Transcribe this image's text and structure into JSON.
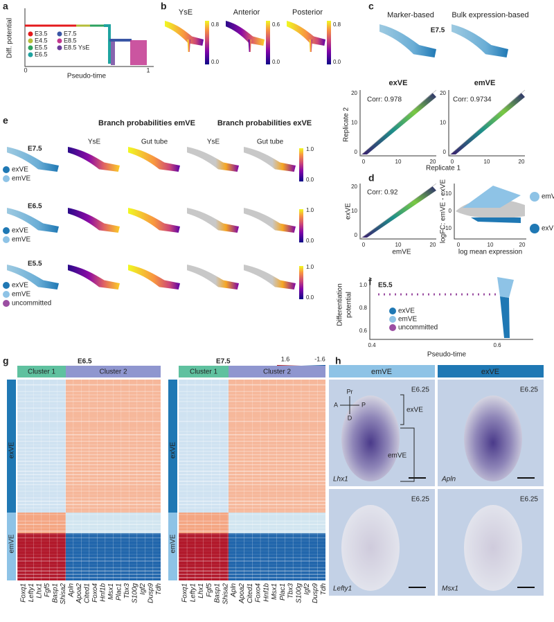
{
  "panel_a": {
    "letter": "a",
    "y_label": "Diff. potential",
    "x_label": "Pseudo-time",
    "x_ticks": [
      "0",
      "1"
    ],
    "legend": [
      {
        "label": "E3.5",
        "color": "#e41a1c"
      },
      {
        "label": "E4.5",
        "color": "#b5bd3a"
      },
      {
        "label": "E5.5",
        "color": "#2ca25f"
      },
      {
        "label": "E6.5",
        "color": "#1fa3a0"
      },
      {
        "label": "E7.5",
        "color": "#3a56a5"
      },
      {
        "label": "E8.5",
        "color": "#c2378f"
      },
      {
        "label": "E8.5 YsE",
        "color": "#6a3d9a"
      }
    ]
  },
  "panel_b": {
    "letter": "b",
    "titles": [
      "YsE",
      "Anterior",
      "Posterior"
    ],
    "colorbars": [
      [
        "0.8",
        "0.0"
      ],
      [
        "0.6",
        "0.0"
      ],
      [
        "0.8",
        "0.0"
      ]
    ]
  },
  "panel_c": {
    "letter": "c",
    "method_titles": [
      "Marker-based",
      "Bulk expression-based"
    ],
    "stage": "E7.5",
    "plot_titles": [
      "exVE",
      "emVE"
    ],
    "corr": [
      "Corr: 0.978",
      "Corr: 0.9734"
    ],
    "y_label": "Replicate 2",
    "x_label": "Replicate 1",
    "ticks": [
      "0",
      "10",
      "20"
    ]
  },
  "panel_e": {
    "letter": "e",
    "group_titles": [
      "Branch probabilities emVE",
      "Branch probabilities exVE"
    ],
    "column_titles": [
      "YsE",
      "Gut tube",
      "YsE",
      "Gut tube"
    ],
    "rows": [
      "E7.5",
      "E6.5",
      "E5.5"
    ],
    "legend": [
      "exVE",
      "emVE",
      "uncommitted"
    ],
    "colorbar": [
      "1.0",
      "0.0"
    ]
  },
  "panel_d": {
    "letter": "d",
    "corr": "Corr: 0.92",
    "y_label": "exVE",
    "x_label": "emVE",
    "ticks": [
      "0",
      "10",
      "20"
    ],
    "right_y_label": "logFC: emVE - exVE",
    "right_x_label": "log mean expression",
    "right_y_ticks": [
      "10",
      "0",
      "-10"
    ],
    "legend": [
      "emVE diff. expressed gene",
      "exVE diff. expressed gene"
    ]
  },
  "panel_f": {
    "letter": "f",
    "stage": "E5.5",
    "y_label": [
      "Differentiation",
      "potential"
    ],
    "x_label": "Pseudo-time",
    "y_ticks": [
      "1.0",
      "0.8",
      "0.6"
    ],
    "x_ticks": [
      "0.4",
      "0.6"
    ],
    "legend": [
      "exVE",
      "emVE",
      "uncommitted"
    ]
  },
  "panel_g": {
    "letter": "g",
    "stages": [
      "E6.5",
      "E7.5"
    ],
    "colorbar": [
      "1.6",
      "-1.6"
    ],
    "clusters": [
      "Cluster 1",
      "Cluster 2"
    ],
    "row_groups": [
      "exVE",
      "emVE"
    ],
    "genes": [
      "Foxq1",
      "Lefty1",
      "Lhx1",
      "Fgf5",
      "Basp1",
      "Shisa2",
      "Apln",
      "Apoa2",
      "Cited1",
      "Foxo4",
      "Hnf1b",
      "Msx1",
      "Plac1",
      "Tbx3",
      "S100g",
      "Igf2",
      "Dusp9",
      "Tdh"
    ]
  },
  "panel_h": {
    "letter": "h",
    "columns": [
      "emVE",
      "exVE"
    ],
    "stages": [
      "E6.25",
      "E6.25",
      "E6.25",
      "E6.25"
    ],
    "axes": [
      "Pr",
      "A",
      "P",
      "D"
    ],
    "regions": [
      "exVE",
      "emVE"
    ],
    "genes": [
      "Lhx1",
      "Apln",
      "Lefty1",
      "Msx1"
    ]
  }
}
